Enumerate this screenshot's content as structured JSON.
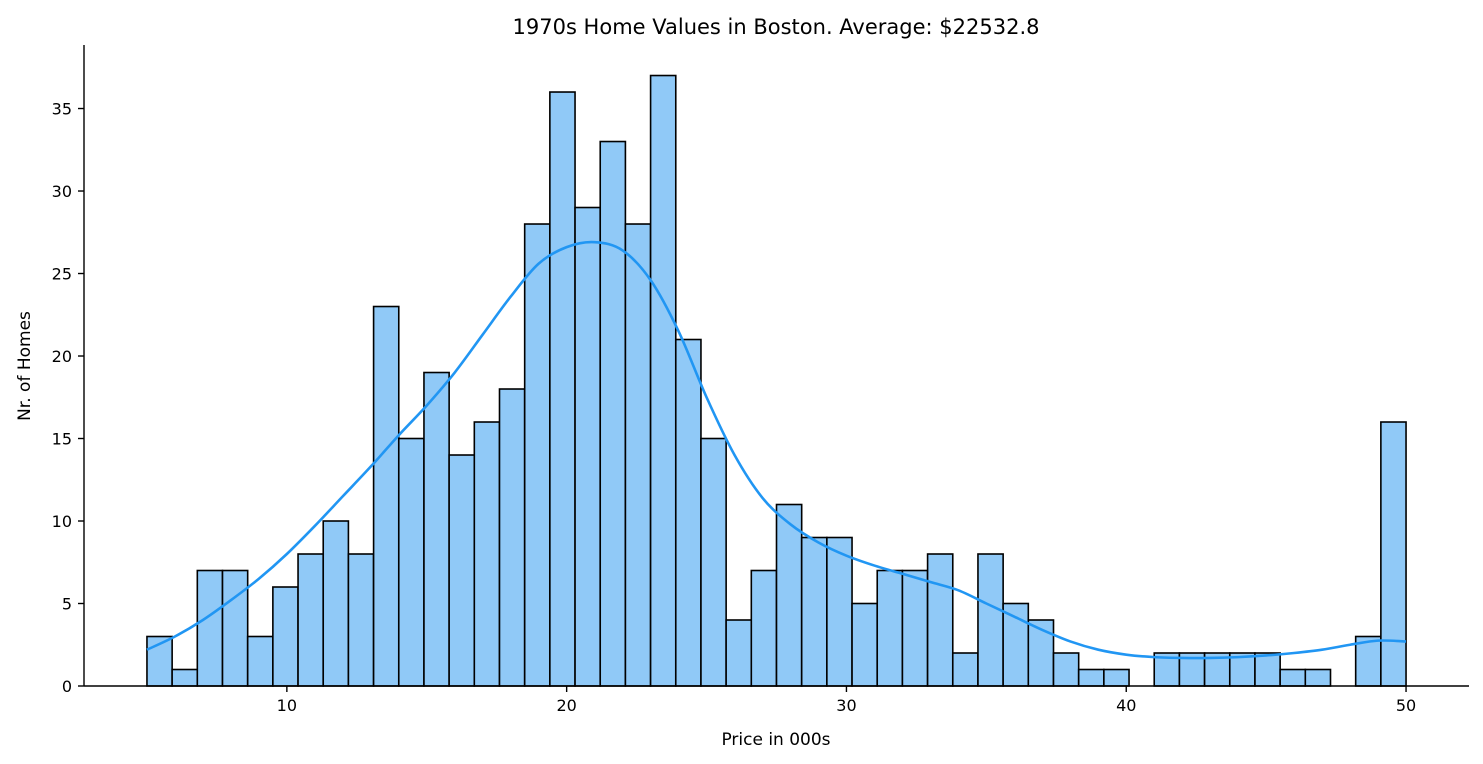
{
  "chart_data": {
    "type": "bar",
    "title": "1970s Home Values in Boston. Average: $22532.8",
    "xlabel": "Price in 000s",
    "ylabel": "Nr. of Homes",
    "xlim": [
      2.75,
      52.25
    ],
    "ylim": [
      0,
      38.85
    ],
    "xticks": [
      10,
      20,
      30,
      40,
      50
    ],
    "yticks": [
      0,
      5,
      10,
      15,
      20,
      25,
      30,
      35
    ],
    "bin_start": 5,
    "bin_width": 0.9,
    "values": [
      3,
      1,
      7,
      7,
      3,
      6,
      8,
      10,
      8,
      23,
      15,
      19,
      14,
      16,
      18,
      28,
      36,
      29,
      33,
      28,
      37,
      21,
      15,
      4,
      7,
      11,
      9,
      9,
      5,
      7,
      7,
      8,
      2,
      8,
      5,
      4,
      2,
      1,
      1,
      0,
      2,
      2,
      2,
      2,
      2,
      1,
      1,
      0,
      3,
      16
    ],
    "kde": {
      "x": [
        5,
        6,
        7,
        8,
        9,
        10,
        11,
        12,
        13,
        14,
        15,
        16,
        17,
        18,
        19,
        20,
        21,
        22,
        23,
        24,
        25,
        26,
        27,
        28,
        29,
        30,
        31,
        32,
        33,
        34,
        35,
        36,
        37,
        38,
        39,
        40,
        41,
        42,
        43,
        44,
        45,
        46,
        47,
        48,
        49,
        50
      ],
      "y": [
        2.2,
        3.0,
        4.0,
        5.2,
        6.5,
        8.0,
        9.7,
        11.5,
        13.3,
        15.2,
        17.0,
        19.0,
        21.3,
        23.6,
        25.6,
        26.6,
        26.9,
        26.4,
        24.6,
        21.5,
        17.5,
        14.0,
        11.4,
        9.8,
        8.7,
        7.9,
        7.3,
        6.8,
        6.3,
        5.8,
        5.0,
        4.2,
        3.4,
        2.7,
        2.2,
        1.9,
        1.75,
        1.7,
        1.7,
        1.75,
        1.85,
        2.0,
        2.2,
        2.5,
        2.75,
        2.7
      ],
      "color": "#2196f3"
    },
    "bar_color": "#90c9f7",
    "grid": false,
    "legend": "none"
  }
}
